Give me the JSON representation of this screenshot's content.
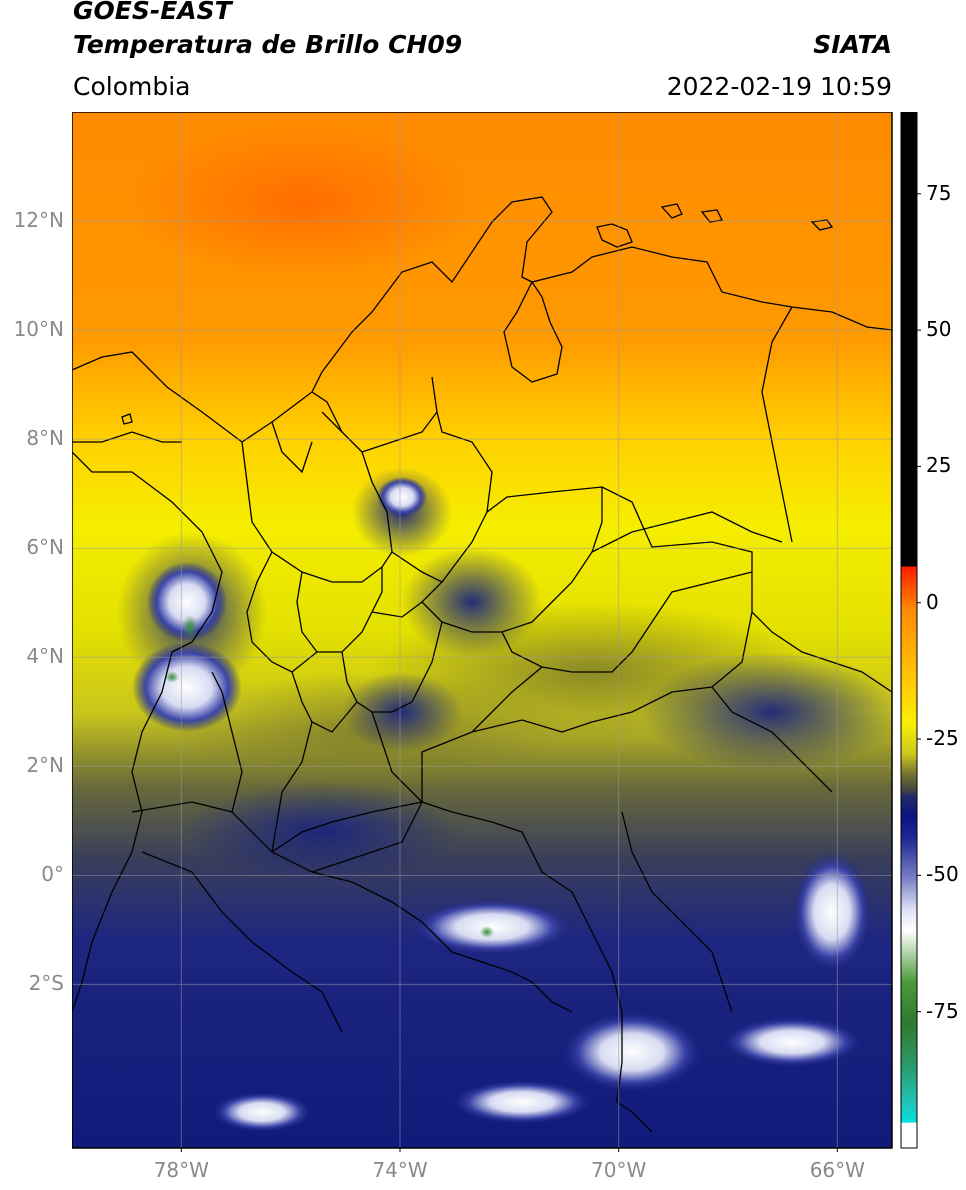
{
  "header": {
    "line1": "GOES-EAST",
    "line2": "Temperatura de Brillo CH09",
    "region": "Colombia",
    "brand": "SIATA",
    "datetime": "2022-02-19 10:59"
  },
  "map": {
    "lon_range": [
      -80,
      -65
    ],
    "lat_range": [
      -5,
      14
    ],
    "x_ticks": [
      {
        "lon": -78,
        "label": "78°W"
      },
      {
        "lon": -74,
        "label": "74°W"
      },
      {
        "lon": -70,
        "label": "70°W"
      },
      {
        "lon": -66,
        "label": "66°W"
      }
    ],
    "y_ticks": [
      {
        "lat": 12,
        "label": "12°N"
      },
      {
        "lat": 10,
        "label": "10°N"
      },
      {
        "lat": 8,
        "label": "8°N"
      },
      {
        "lat": 6,
        "label": "6°N"
      },
      {
        "lat": 4,
        "label": "4°N"
      },
      {
        "lat": 2,
        "label": "2°N"
      },
      {
        "lat": 0,
        "label": "0°"
      },
      {
        "lat": -2,
        "label": "2°S"
      }
    ],
    "grid": true
  },
  "colorbar": {
    "range": [
      -100,
      90
    ],
    "ticks": [
      {
        "value": 75,
        "label": "75"
      },
      {
        "value": 50,
        "label": "50"
      },
      {
        "value": 25,
        "label": "25"
      },
      {
        "value": 0,
        "label": "0"
      },
      {
        "value": -25,
        "label": "-25"
      },
      {
        "value": -50,
        "label": "-50"
      },
      {
        "value": -75,
        "label": "-75"
      }
    ]
  }
}
